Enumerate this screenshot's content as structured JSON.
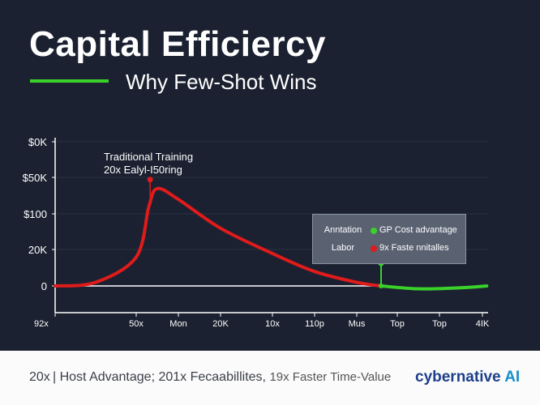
{
  "header": {
    "title": "Capital Efficiercy",
    "subtitle": "Why Few-Shot Wins"
  },
  "colors": {
    "background": "#1b2130",
    "accent": "#3ad12a",
    "traditional": "#e01b1b",
    "few_shot": "#3ad12a"
  },
  "chart_data": {
    "type": "line",
    "x_tick_labels": [
      "92x",
      "50x",
      "Mon",
      "20K",
      "10x",
      "110p",
      "Mus",
      "Top",
      "Top",
      "4IK"
    ],
    "y_tick_labels": [
      "0",
      "20K",
      "$100",
      "$50K",
      "$0K"
    ],
    "grid": true,
    "series": [
      {
        "color": "#e01b1b",
        "x": [
          0,
          0.5,
          1,
          1.3,
          1.5,
          2,
          3,
          4,
          5,
          6,
          6.6
        ],
        "y": [
          0,
          0.1,
          0.8,
          2.2,
          2.7,
          2.4,
          1.6,
          0.9,
          0.4,
          0.1,
          0
        ]
      },
      {
        "color": "#3ad12a",
        "x": [
          6.6,
          7.5,
          8.5,
          9.1
        ],
        "y": [
          0,
          -0.08,
          -0.05,
          0
        ]
      }
    ],
    "annotations": [
      {
        "text": [
          "Traditional Training",
          "20x Ealyl-I50ring"
        ],
        "x": 1.33,
        "y": 2.95,
        "color": "#e01b1b"
      },
      {
        "x": 6.6,
        "y": 0.63,
        "color": "#3ad12a"
      }
    ],
    "legend": {
      "placement": "right",
      "rows": [
        {
          "key": "Anntation",
          "label": "GP Cost advantage",
          "color": "#3ad12a"
        },
        {
          "key": "Labor",
          "label": "9x Faste nnitalles",
          "color": "#e01b1b"
        }
      ]
    }
  },
  "footer": {
    "text_main": "20x | Host Advantage; 201x Fecaabillites,",
    "text_small": "19x Faster Time-Value",
    "logo_a": "cybernative",
    "logo_b": "AI"
  }
}
